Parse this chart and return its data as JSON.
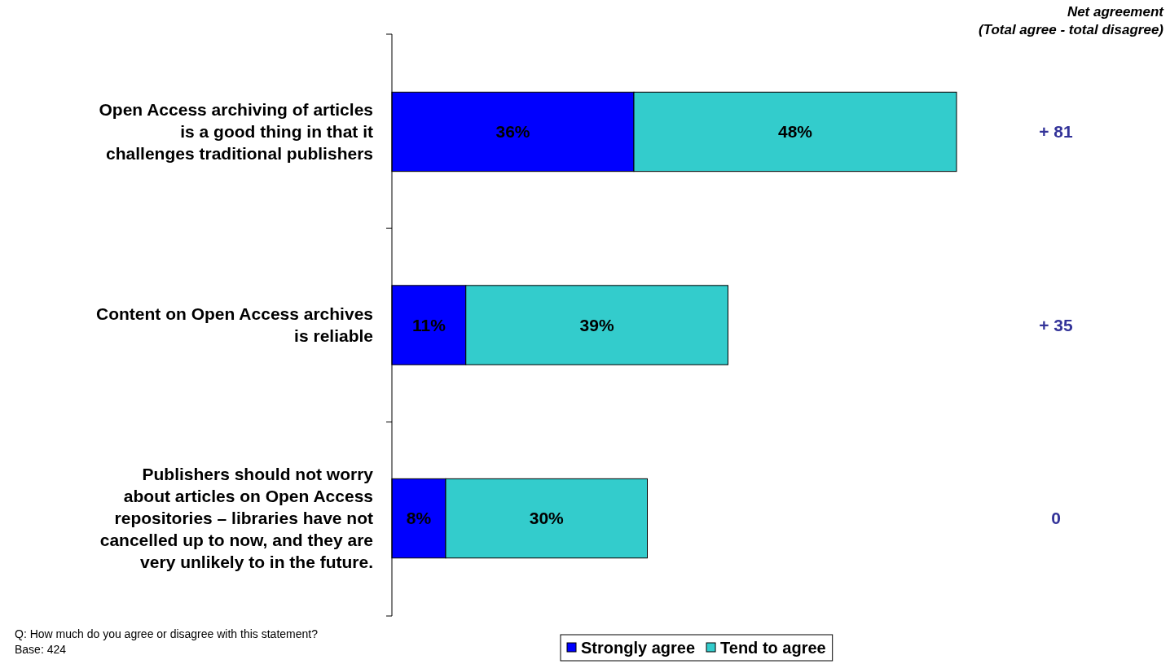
{
  "chart_data": {
    "type": "bar",
    "orientation": "horizontal",
    "stacked": true,
    "categories": [
      "Open Access archiving of articles\nis a good thing in that it\nchallenges traditional publishers",
      "Content on Open Access archives\nis reliable",
      "Publishers should not worry\nabout articles on Open Access\nrepositories – libraries have not\ncancelled up to now, and they are\nvery unlikely to in the future."
    ],
    "series": [
      {
        "name": "Strongly agree",
        "color": "#0000ff",
        "values": [
          36,
          11,
          8
        ],
        "value_labels": [
          "36%",
          "11%",
          "8%"
        ]
      },
      {
        "name": "Tend to agree",
        "color": "#33cccc",
        "values": [
          48,
          39,
          30
        ],
        "value_labels": [
          "48%",
          "39%",
          "30%"
        ]
      }
    ],
    "legend": "bottom right",
    "annotations": [
      "Net agreement\n(Total agree - total disagree)",
      "+ 81",
      "+ 35",
      "0",
      "Q: How much do you agree or disagree with this statement?\nBase: 424"
    ]
  }
}
